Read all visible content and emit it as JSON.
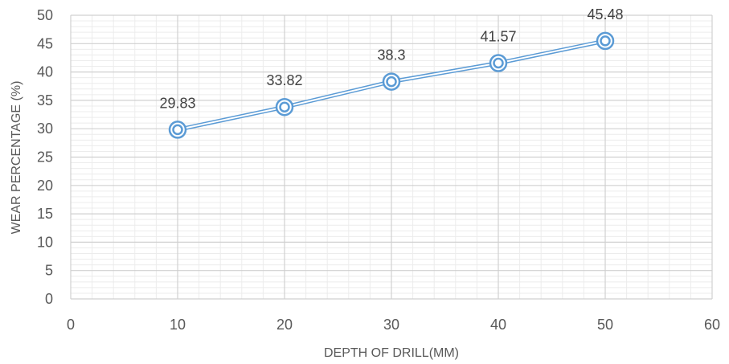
{
  "chart_data": {
    "type": "line",
    "title": "",
    "xlabel": "DEPTH OF DRILL(MM)",
    "ylabel": "WEAR PERCENTAGE (%)",
    "xlim": [
      0,
      60
    ],
    "ylim": [
      0,
      50
    ],
    "x_ticks": [
      "0",
      "10",
      "20",
      "30",
      "40",
      "50",
      "60"
    ],
    "y_ticks": [
      "0",
      "5",
      "10",
      "15",
      "20",
      "25",
      "30",
      "35",
      "40",
      "45",
      "50"
    ],
    "grid": true,
    "legend": "none",
    "series": [
      {
        "x": [
          10,
          20,
          30,
          40,
          50
        ],
        "values": [
          29.83,
          33.82,
          38.3,
          41.57,
          45.48
        ],
        "labels": [
          "29.83",
          "33.82",
          "38.3",
          "41.57",
          "45.48"
        ],
        "color": "#5b9bd5"
      }
    ]
  }
}
